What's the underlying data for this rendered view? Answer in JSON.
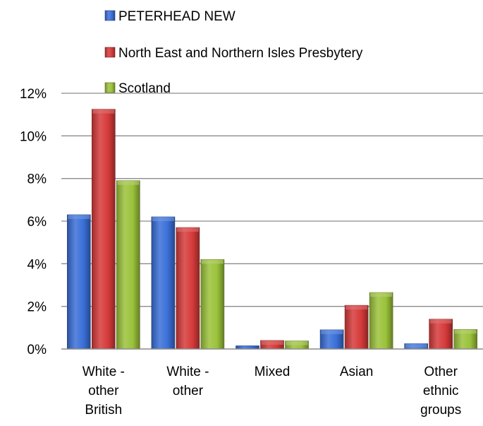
{
  "chart_data": {
    "type": "bar",
    "categories": [
      [
        "White -",
        "other",
        "British"
      ],
      [
        "White -",
        "other"
      ],
      [
        "Mixed"
      ],
      [
        "Asian"
      ],
      [
        "Other",
        "ethnic",
        "groups"
      ]
    ],
    "series": [
      {
        "name": "PETERHEAD NEW",
        "color": "#3a6fd8",
        "values": [
          6.3,
          6.2,
          0.15,
          0.9,
          0.25
        ]
      },
      {
        "name": "North East and Northern Isles Presbytery",
        "color": "#d63a3a",
        "values": [
          11.25,
          5.7,
          0.4,
          2.05,
          1.4
        ]
      },
      {
        "name": "Scotland",
        "color": "#9bc23a",
        "values": [
          7.9,
          4.2,
          0.38,
          2.65,
          0.92
        ]
      }
    ],
    "y_ticks": [
      "0%",
      "2%",
      "4%",
      "6%",
      "8%",
      "10%",
      "12%"
    ],
    "ylim": [
      0,
      12
    ],
    "grid": true,
    "legend_position": "top"
  }
}
